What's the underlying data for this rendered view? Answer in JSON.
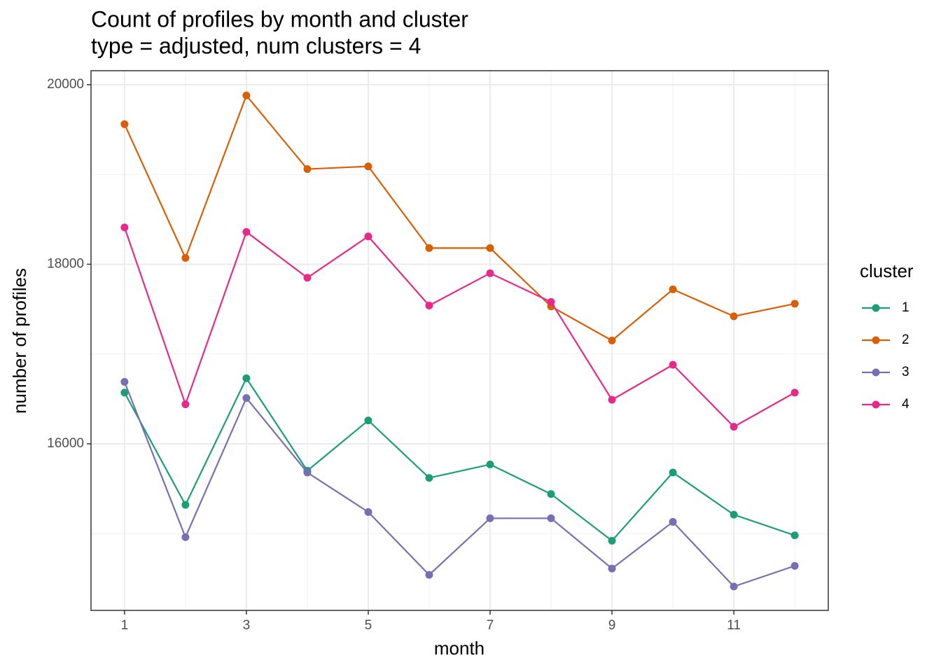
{
  "chart_data": {
    "type": "line",
    "title": "Count of profiles by month and cluster",
    "subtitle": "type = adjusted, num clusters = 4",
    "x_label": "month",
    "y_label": "number of profiles",
    "legend_title": "cluster",
    "legend": "right",
    "grid": true,
    "x": [
      1,
      2,
      3,
      4,
      5,
      6,
      7,
      8,
      9,
      10,
      11,
      12
    ],
    "xlim": [
      0.45,
      12.55
    ],
    "xticks": [
      1,
      3,
      5,
      7,
      9,
      11
    ],
    "xminorticks": [
      2,
      4,
      6,
      8,
      10,
      12
    ],
    "ylim": [
      14144,
      20156
    ],
    "yticks": [
      16000,
      18000,
      20000
    ],
    "yminorticks": [
      15000,
      17000,
      19000
    ],
    "series": [
      {
        "name": "1",
        "color": "#1b9e77",
        "values": [
          16570,
          15320,
          16730,
          15700,
          16260,
          15620,
          15770,
          15440,
          14920,
          15680,
          15210,
          14980
        ]
      },
      {
        "name": "2",
        "color": "#d95f02",
        "values": [
          19560,
          18070,
          19880,
          19060,
          19090,
          18180,
          18180,
          17530,
          17150,
          17720,
          17420,
          17560
        ]
      },
      {
        "name": "3",
        "color": "#7570b3",
        "values": [
          16690,
          14960,
          16510,
          15680,
          15240,
          14540,
          15170,
          15170,
          14610,
          15130,
          14410,
          14640
        ]
      },
      {
        "name": "4",
        "color": "#e7298a",
        "values": [
          18410,
          16440,
          18360,
          17850,
          18310,
          17540,
          17900,
          17580,
          16490,
          16880,
          16190,
          16570
        ]
      }
    ]
  }
}
